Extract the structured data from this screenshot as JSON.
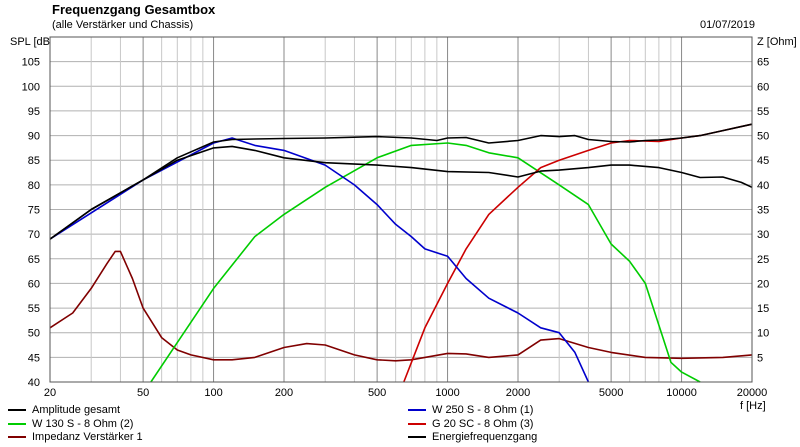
{
  "header": {
    "title": "Frequenzgang Gesamtbox",
    "subtitle": "(alle Verstärker und Chassis)",
    "date": "01/07/2019"
  },
  "axes": {
    "left_label": "SPL [dB]",
    "right_label": "Z [Ohm]",
    "x_unit": "f [Hz]"
  },
  "chart_data": {
    "type": "line",
    "title": "Frequenzgang Gesamtbox",
    "subtitle": "(alle Verstärker und Chassis)",
    "xlabel": "f [Hz]",
    "ylabel": "SPL [dB]",
    "y2label": "Z [Ohm]",
    "x_scale": "log",
    "xlim": [
      20,
      20000
    ],
    "ylim": [
      40,
      110
    ],
    "y2lim": [
      0,
      70
    ],
    "x_ticks": [
      20,
      50,
      100,
      200,
      500,
      1000,
      2000,
      5000,
      10000,
      20000
    ],
    "x_tick_labels": [
      "20",
      "50",
      "100",
      "200",
      "500",
      "1000",
      "2000",
      "5000",
      "10000",
      "20000"
    ],
    "y_ticks": [
      40,
      45,
      50,
      55,
      60,
      65,
      70,
      75,
      80,
      85,
      90,
      95,
      100,
      105
    ],
    "y2_ticks": [
      5,
      10,
      15,
      20,
      25,
      30,
      35,
      40,
      45,
      50,
      55,
      60,
      65
    ],
    "grid": true,
    "legend_position": "bottom",
    "series": [
      {
        "name": "Amplitude gesamt",
        "color": "#000000",
        "axis": "left",
        "x": [
          20,
          30,
          50,
          70,
          100,
          120,
          150,
          200,
          300,
          500,
          700,
          900,
          1000,
          1200,
          1500,
          2000,
          2500,
          3000,
          3500,
          4000,
          5000,
          6000,
          7000,
          8000,
          10000,
          12000,
          15000,
          20000
        ],
        "y": [
          69,
          75,
          81,
          85.5,
          88.7,
          89.2,
          89.3,
          89.4,
          89.5,
          89.8,
          89.5,
          89,
          89.5,
          89.6,
          88.5,
          89,
          90,
          89.8,
          90,
          89.2,
          88.8,
          88.7,
          89,
          89.1,
          89.5,
          90,
          91,
          92.3
        ]
      },
      {
        "name": "Energiefrequenzgang",
        "color": "#000000",
        "axis": "left",
        "x": [
          20,
          30,
          50,
          70,
          100,
          120,
          150,
          200,
          300,
          500,
          700,
          1000,
          1500,
          2000,
          2500,
          3000,
          4000,
          5000,
          6000,
          8000,
          10000,
          12000,
          15000,
          18000,
          20000
        ],
        "y": [
          69,
          75,
          81,
          85,
          87.5,
          87.8,
          87,
          85.5,
          84.5,
          84,
          83.5,
          82.7,
          82.5,
          81.6,
          82.8,
          83,
          83.5,
          84,
          84,
          83.5,
          82.5,
          81.5,
          81.6,
          80.5,
          79.5
        ]
      },
      {
        "name": "W 250 S - 8 Ohm  (1)",
        "color": "#0000cc",
        "axis": "left",
        "x": [
          20,
          50,
          100,
          120,
          150,
          200,
          300,
          400,
          500,
          600,
          700,
          800,
          1000,
          1200,
          1500,
          2000,
          2500,
          3000,
          3500,
          4000
        ],
        "y": [
          69,
          81,
          88.5,
          89.5,
          88,
          87,
          84,
          80,
          76,
          72,
          69.5,
          67,
          65.5,
          61,
          57,
          54,
          51,
          50,
          46,
          40
        ]
      },
      {
        "name": "W 130 S - 8 Ohm (2)",
        "color": "#00cc00",
        "axis": "left",
        "x": [
          54,
          70,
          100,
          150,
          200,
          300,
          500,
          700,
          1000,
          1200,
          1500,
          2000,
          3000,
          4000,
          5000,
          6000,
          7000,
          8000,
          9000,
          10000,
          12000
        ],
        "y": [
          40,
          48,
          59,
          69.5,
          74,
          79.5,
          85.5,
          88,
          88.5,
          88,
          86.5,
          85.5,
          80,
          76,
          68,
          64.5,
          60,
          51.5,
          44,
          42,
          40
        ]
      },
      {
        "name": "G 20 SC - 8 Ohm (3)",
        "color": "#cc0000",
        "axis": "left",
        "x": [
          650,
          800,
          1000,
          1200,
          1500,
          2000,
          2500,
          3000,
          4000,
          5000,
          6000,
          8000,
          10000,
          12000,
          15000,
          20000
        ],
        "y": [
          40,
          51,
          60,
          67,
          74,
          79.5,
          83.5,
          85,
          87,
          88.5,
          89,
          88.8,
          89.5,
          90,
          91,
          92.3
        ]
      },
      {
        "name": "Impedanz Verstärker 1",
        "color": "#800000",
        "axis": "right",
        "x": [
          20,
          25,
          30,
          35,
          38,
          40,
          45,
          50,
          60,
          70,
          80,
          100,
          120,
          150,
          200,
          250,
          300,
          400,
          500,
          600,
          700,
          800,
          1000,
          1200,
          1500,
          2000,
          2500,
          3000,
          4000,
          5000,
          7000,
          10000,
          15000,
          20000
        ],
        "y": [
          11,
          14,
          19,
          24,
          26.5,
          26.5,
          21,
          15,
          9,
          6.5,
          5.5,
          4.5,
          4.5,
          5,
          7,
          7.8,
          7.5,
          5.5,
          4.5,
          4.3,
          4.5,
          5,
          5.8,
          5.7,
          5,
          5.5,
          8.5,
          8.8,
          7,
          6,
          5,
          4.8,
          5,
          5.5
        ]
      }
    ]
  },
  "legend": [
    {
      "label": "Amplitude gesamt",
      "color": "#000000"
    },
    {
      "label": "W 250 S - 8 Ohm  (1)",
      "color": "#0000cc"
    },
    {
      "label": "W 130 S - 8 Ohm (2)",
      "color": "#00cc00"
    },
    {
      "label": "G 20 SC - 8 Ohm (3)",
      "color": "#cc0000"
    },
    {
      "label": "Impedanz Verstärker 1",
      "color": "#800000"
    },
    {
      "label": "Energiefrequenzgang",
      "color": "#000000"
    }
  ]
}
